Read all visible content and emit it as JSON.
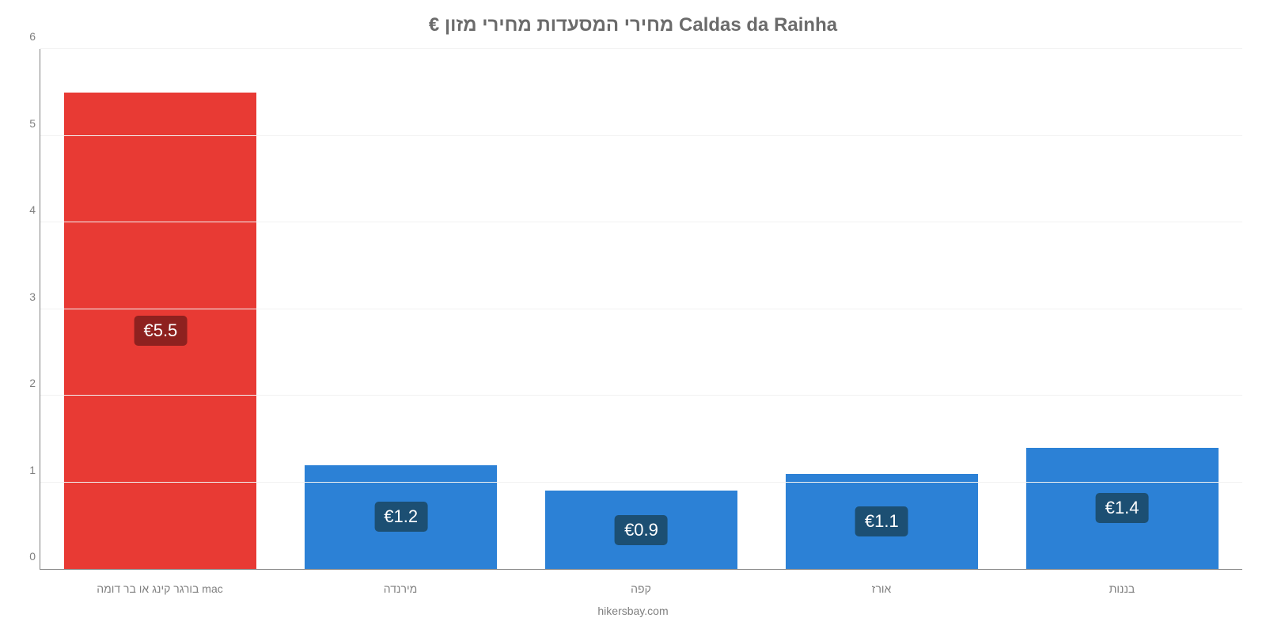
{
  "chart": {
    "type": "bar",
    "title": "€ מחירי המסעדות מחירי מזון Caldas da Rainha",
    "title_fontsize": 24,
    "title_color": "#6b6b6b",
    "attribution": "hikersbay.com",
    "attribution_color": "#808080",
    "background_color": "#ffffff",
    "axis_color": "#808080",
    "grid_color": "#f2f2f2",
    "tick_color": "#808080",
    "tick_fontsize": 14,
    "bar_width_pct": 80,
    "ylim": [
      0,
      6
    ],
    "ytick_step": 1,
    "categories": [
      "בורגר קינג או בר דומה mac",
      "מירנדה",
      "קפה",
      "אורז",
      "בננות"
    ],
    "values": [
      5.5,
      1.2,
      0.9,
      1.1,
      1.4
    ],
    "value_labels": [
      "€5.5",
      "€1.2",
      "€0.9",
      "€1.1",
      "€1.4"
    ],
    "bar_colors": [
      "#e83a34",
      "#2c81d6",
      "#2c81d6",
      "#2c81d6",
      "#2c81d6"
    ],
    "badge_colors": [
      "#8e211f",
      "#1c4f73",
      "#1c4f73",
      "#1c4f73",
      "#1c4f73"
    ],
    "badge_fontsize": 22,
    "badge_text_color": "#ffffff"
  }
}
